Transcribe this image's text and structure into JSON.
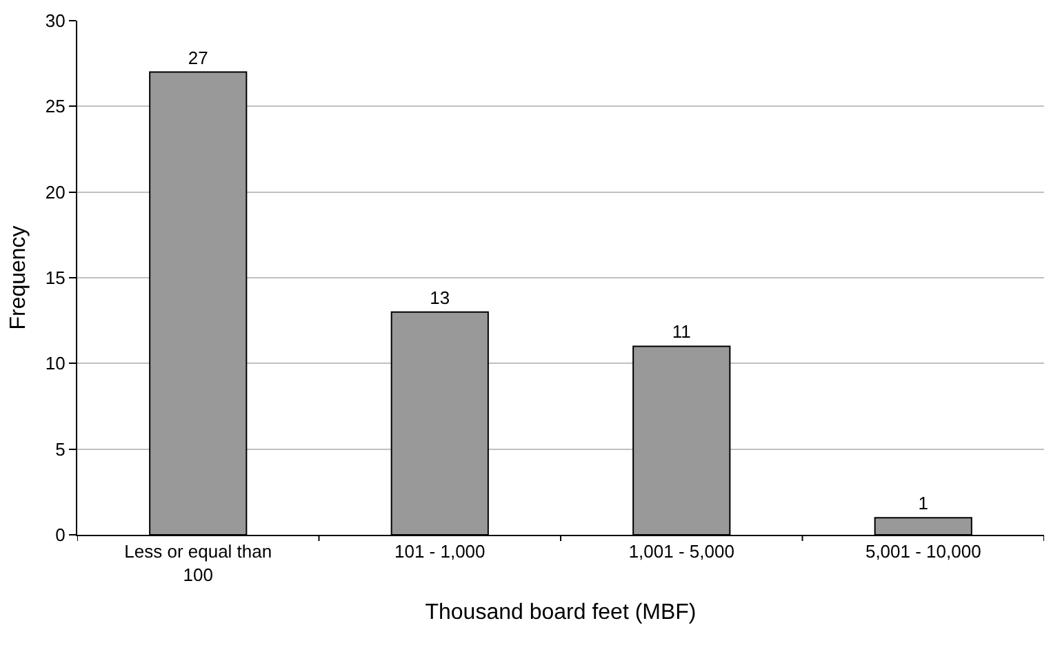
{
  "chart_data": {
    "type": "bar",
    "xlabel": "Thousand board feet (MBF)",
    "ylabel": "Frequency",
    "categories": [
      "Less or equal than 100",
      "101 - 1,000",
      "1,001 - 5,000",
      "5,001 - 10,000"
    ],
    "values": [
      27,
      13,
      11,
      1
    ],
    "color": "#999999",
    "ylim": [
      0,
      30
    ],
    "yticks": [
      0,
      5,
      10,
      15,
      20,
      25,
      30
    ],
    "grid": "y",
    "data_labels": true
  }
}
